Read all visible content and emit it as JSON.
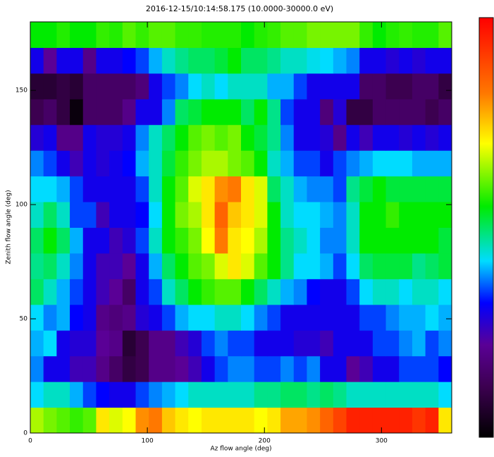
{
  "chart_data": {
    "type": "heatmap",
    "title": "2016-12-15/10:14:58.175 (10.0000-30000.0 eV)",
    "xlabel": "Az flow angle (deg)",
    "ylabel": "Zenith flow angle (deg)",
    "xlim": [
      0,
      360
    ],
    "ylim": [
      0,
      180
    ],
    "xticks": [
      0,
      100,
      200,
      300
    ],
    "yticks": [
      0,
      50,
      100,
      150
    ],
    "colormap": "rainbow",
    "zlim": [
      0,
      1
    ],
    "z": [
      [
        0.65,
        0.62,
        0.6,
        0.58,
        0.6,
        0.72,
        0.68,
        0.7,
        0.8,
        0.82,
        0.75,
        0.72,
        0.7,
        0.72,
        0.72,
        0.72,
        0.72,
        0.7,
        0.72,
        0.78,
        0.78,
        0.8,
        0.85,
        0.9,
        0.95,
        0.95,
        0.95,
        0.95,
        0.95,
        0.92,
        0.95,
        0.72
      ],
      [
        0.42,
        0.45,
        0.45,
        0.4,
        0.35,
        0.32,
        0.3,
        0.3,
        0.35,
        0.38,
        0.4,
        0.42,
        0.45,
        0.45,
        0.45,
        0.45,
        0.45,
        0.48,
        0.48,
        0.5,
        0.5,
        0.48,
        0.5,
        0.48,
        0.45,
        0.45,
        0.45,
        0.45,
        0.45,
        0.45,
        0.45,
        0.42
      ],
      [
        0.38,
        0.3,
        0.3,
        0.25,
        0.25,
        0.2,
        0.15,
        0.1,
        0.12,
        0.2,
        0.2,
        0.22,
        0.25,
        0.3,
        0.35,
        0.38,
        0.38,
        0.35,
        0.35,
        0.38,
        0.35,
        0.38,
        0.3,
        0.3,
        0.22,
        0.25,
        0.3,
        0.3,
        0.35,
        0.35,
        0.35,
        0.32
      ],
      [
        0.4,
        0.42,
        0.3,
        0.28,
        0.28,
        0.22,
        0.2,
        0.08,
        0.12,
        0.2,
        0.2,
        0.25,
        0.28,
        0.35,
        0.38,
        0.35,
        0.35,
        0.3,
        0.3,
        0.3,
        0.28,
        0.28,
        0.25,
        0.3,
        0.3,
        0.3,
        0.35,
        0.35,
        0.38,
        0.4,
        0.35,
        0.38
      ],
      [
        0.42,
        0.38,
        0.4,
        0.32,
        0.3,
        0.2,
        0.18,
        0.2,
        0.28,
        0.3,
        0.35,
        0.4,
        0.42,
        0.42,
        0.45,
        0.45,
        0.42,
        0.38,
        0.35,
        0.3,
        0.3,
        0.3,
        0.3,
        0.3,
        0.3,
        0.35,
        0.35,
        0.38,
        0.4,
        0.4,
        0.42,
        0.4
      ],
      [
        0.5,
        0.45,
        0.4,
        0.35,
        0.3,
        0.25,
        0.22,
        0.15,
        0.3,
        0.35,
        0.45,
        0.5,
        0.55,
        0.58,
        0.6,
        0.6,
        0.55,
        0.5,
        0.45,
        0.4,
        0.38,
        0.32,
        0.3,
        0.3,
        0.35,
        0.42,
        0.45,
        0.45,
        0.42,
        0.45,
        0.45,
        0.42
      ],
      [
        0.48,
        0.5,
        0.45,
        0.38,
        0.3,
        0.25,
        0.25,
        0.22,
        0.3,
        0.4,
        0.5,
        0.55,
        0.6,
        0.62,
        0.68,
        0.72,
        0.68,
        0.6,
        0.55,
        0.48,
        0.42,
        0.42,
        0.4,
        0.35,
        0.42,
        0.5,
        0.52,
        0.52,
        0.52,
        0.48,
        0.5,
        0.52
      ],
      [
        0.5,
        0.55,
        0.5,
        0.4,
        0.3,
        0.3,
        0.25,
        0.28,
        0.35,
        0.45,
        0.55,
        0.58,
        0.62,
        0.7,
        0.82,
        0.72,
        0.7,
        0.65,
        0.55,
        0.48,
        0.45,
        0.42,
        0.38,
        0.38,
        0.45,
        0.55,
        0.55,
        0.55,
        0.55,
        0.55,
        0.55,
        0.52
      ],
      [
        0.45,
        0.5,
        0.45,
        0.35,
        0.35,
        0.25,
        0.3,
        0.3,
        0.32,
        0.42,
        0.55,
        0.62,
        0.65,
        0.72,
        0.85,
        0.75,
        0.72,
        0.68,
        0.55,
        0.45,
        0.42,
        0.42,
        0.4,
        0.38,
        0.45,
        0.55,
        0.55,
        0.58,
        0.55,
        0.55,
        0.55,
        0.55
      ],
      [
        0.42,
        0.42,
        0.4,
        0.35,
        0.3,
        0.3,
        0.3,
        0.3,
        0.35,
        0.45,
        0.55,
        0.6,
        0.68,
        0.72,
        0.8,
        0.82,
        0.72,
        0.68,
        0.5,
        0.45,
        0.4,
        0.38,
        0.38,
        0.35,
        0.48,
        0.52,
        0.55,
        0.52,
        0.52,
        0.52,
        0.52,
        0.52
      ],
      [
        0.38,
        0.35,
        0.3,
        0.25,
        0.3,
        0.28,
        0.3,
        0.32,
        0.4,
        0.45,
        0.52,
        0.58,
        0.62,
        0.65,
        0.65,
        0.62,
        0.6,
        0.55,
        0.45,
        0.4,
        0.35,
        0.35,
        0.3,
        0.35,
        0.38,
        0.4,
        0.42,
        0.42,
        0.42,
        0.4,
        0.4,
        0.4
      ],
      [
        0.28,
        0.3,
        0.2,
        0.2,
        0.3,
        0.28,
        0.28,
        0.3,
        0.38,
        0.45,
        0.5,
        0.55,
        0.6,
        0.62,
        0.6,
        0.62,
        0.55,
        0.52,
        0.48,
        0.38,
        0.3,
        0.3,
        0.28,
        0.2,
        0.3,
        0.25,
        0.3,
        0.3,
        0.28,
        0.3,
        0.28,
        0.3
      ],
      [
        0.12,
        0.15,
        0.1,
        0.02,
        0.15,
        0.15,
        0.15,
        0.2,
        0.3,
        0.3,
        0.38,
        0.5,
        0.52,
        0.55,
        0.55,
        0.55,
        0.5,
        0.55,
        0.48,
        0.35,
        0.3,
        0.3,
        0.18,
        0.28,
        0.1,
        0.1,
        0.15,
        0.15,
        0.15,
        0.15,
        0.12,
        0.15
      ],
      [
        0.08,
        0.08,
        0.1,
        0.08,
        0.15,
        0.15,
        0.15,
        0.15,
        0.18,
        0.3,
        0.35,
        0.38,
        0.42,
        0.45,
        0.42,
        0.45,
        0.45,
        0.45,
        0.4,
        0.4,
        0.35,
        0.3,
        0.3,
        0.3,
        0.3,
        0.15,
        0.15,
        0.12,
        0.12,
        0.15,
        0.15,
        0.1
      ],
      [
        0.3,
        0.22,
        0.3,
        0.3,
        0.2,
        0.3,
        0.3,
        0.32,
        0.35,
        0.4,
        0.45,
        0.48,
        0.5,
        0.5,
        0.52,
        0.55,
        0.5,
        0.5,
        0.48,
        0.45,
        0.45,
        0.43,
        0.42,
        0.4,
        0.38,
        0.3,
        0.3,
        0.28,
        0.3,
        0.28,
        0.3,
        0.3
      ],
      [
        0.55,
        0.55,
        0.57,
        0.55,
        0.55,
        0.58,
        0.57,
        0.6,
        0.58,
        0.6,
        0.6,
        0.58,
        0.58,
        0.57,
        0.57,
        0.57,
        0.55,
        0.57,
        0.58,
        0.6,
        0.6,
        0.62,
        0.62,
        0.62,
        0.62,
        0.58,
        0.55,
        0.57,
        0.58,
        0.57,
        0.57,
        0.6
      ]
    ]
  }
}
